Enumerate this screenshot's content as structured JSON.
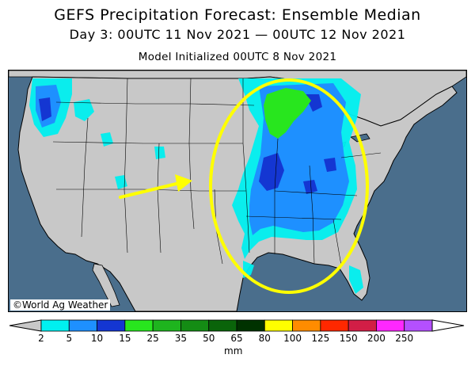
{
  "title": "GEFS Precipitation Forecast: Ensemble Median",
  "subtitle": "Day 3: 00UTC 11 Nov 2021 — 00UTC 12 Nov 2021",
  "init_line": "Model Initialized 00UTC 8 Nov 2021",
  "copyright": "©World Ag Weather",
  "colors": {
    "ocean": "#4a6e8c",
    "land": "#c8c8c8",
    "highlight": "#ffff00"
  },
  "colorbar": {
    "unit": "mm",
    "ticks": [
      "2",
      "5",
      "10",
      "15",
      "25",
      "35",
      "50",
      "65",
      "80",
      "100",
      "125",
      "150",
      "200",
      "250"
    ],
    "colors": [
      "#00f0f0",
      "#1e90ff",
      "#1436d2",
      "#28e61e",
      "#1eb41e",
      "#148c14",
      "#0a640a",
      "#003200",
      "#ffff00",
      "#ff8c00",
      "#ff2800",
      "#d21e46",
      "#ff28ff",
      "#b450ff",
      "#9b5ad2"
    ],
    "under_color": "#c8c8c8",
    "over_color": "#ffffff"
  }
}
